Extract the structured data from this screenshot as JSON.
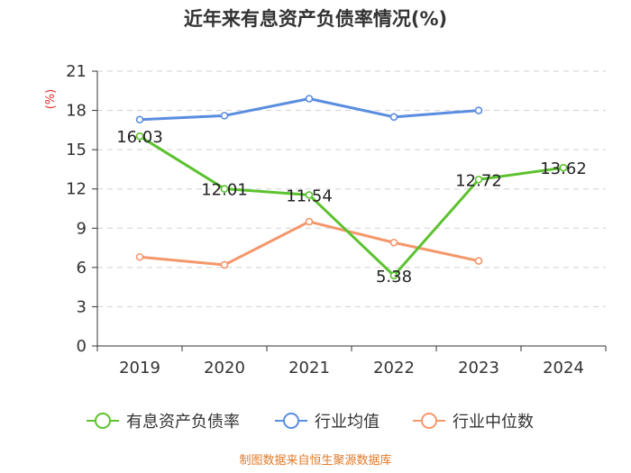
{
  "chart_data": {
    "type": "line",
    "title": "近年来有息资产负债率情况(%)",
    "unit_label": "(%)",
    "categories": [
      "2019",
      "2020",
      "2021",
      "2022",
      "2023",
      "2024"
    ],
    "ylim": [
      0,
      21
    ],
    "yticks": [
      0,
      3,
      6,
      9,
      12,
      15,
      18,
      21
    ],
    "grid": true,
    "legend_position": "bottom",
    "series": [
      {
        "name": "有息资产负债率",
        "color": "#5cc22f",
        "values": [
          16.03,
          12.01,
          11.54,
          5.38,
          12.72,
          13.62
        ],
        "labels": [
          "16.03",
          "12.01",
          "11.54",
          "5.38",
          "12.72",
          "13.62"
        ]
      },
      {
        "name": "行业均值",
        "color": "#5a8de0",
        "values": [
          17.3,
          17.6,
          18.9,
          17.5,
          18.0,
          null
        ]
      },
      {
        "name": "行业中位数",
        "color": "#f4976b",
        "values": [
          6.8,
          6.2,
          9.5,
          7.9,
          6.5,
          null
        ]
      }
    ]
  },
  "source_text": "制图数据来自恒生聚源数据库"
}
